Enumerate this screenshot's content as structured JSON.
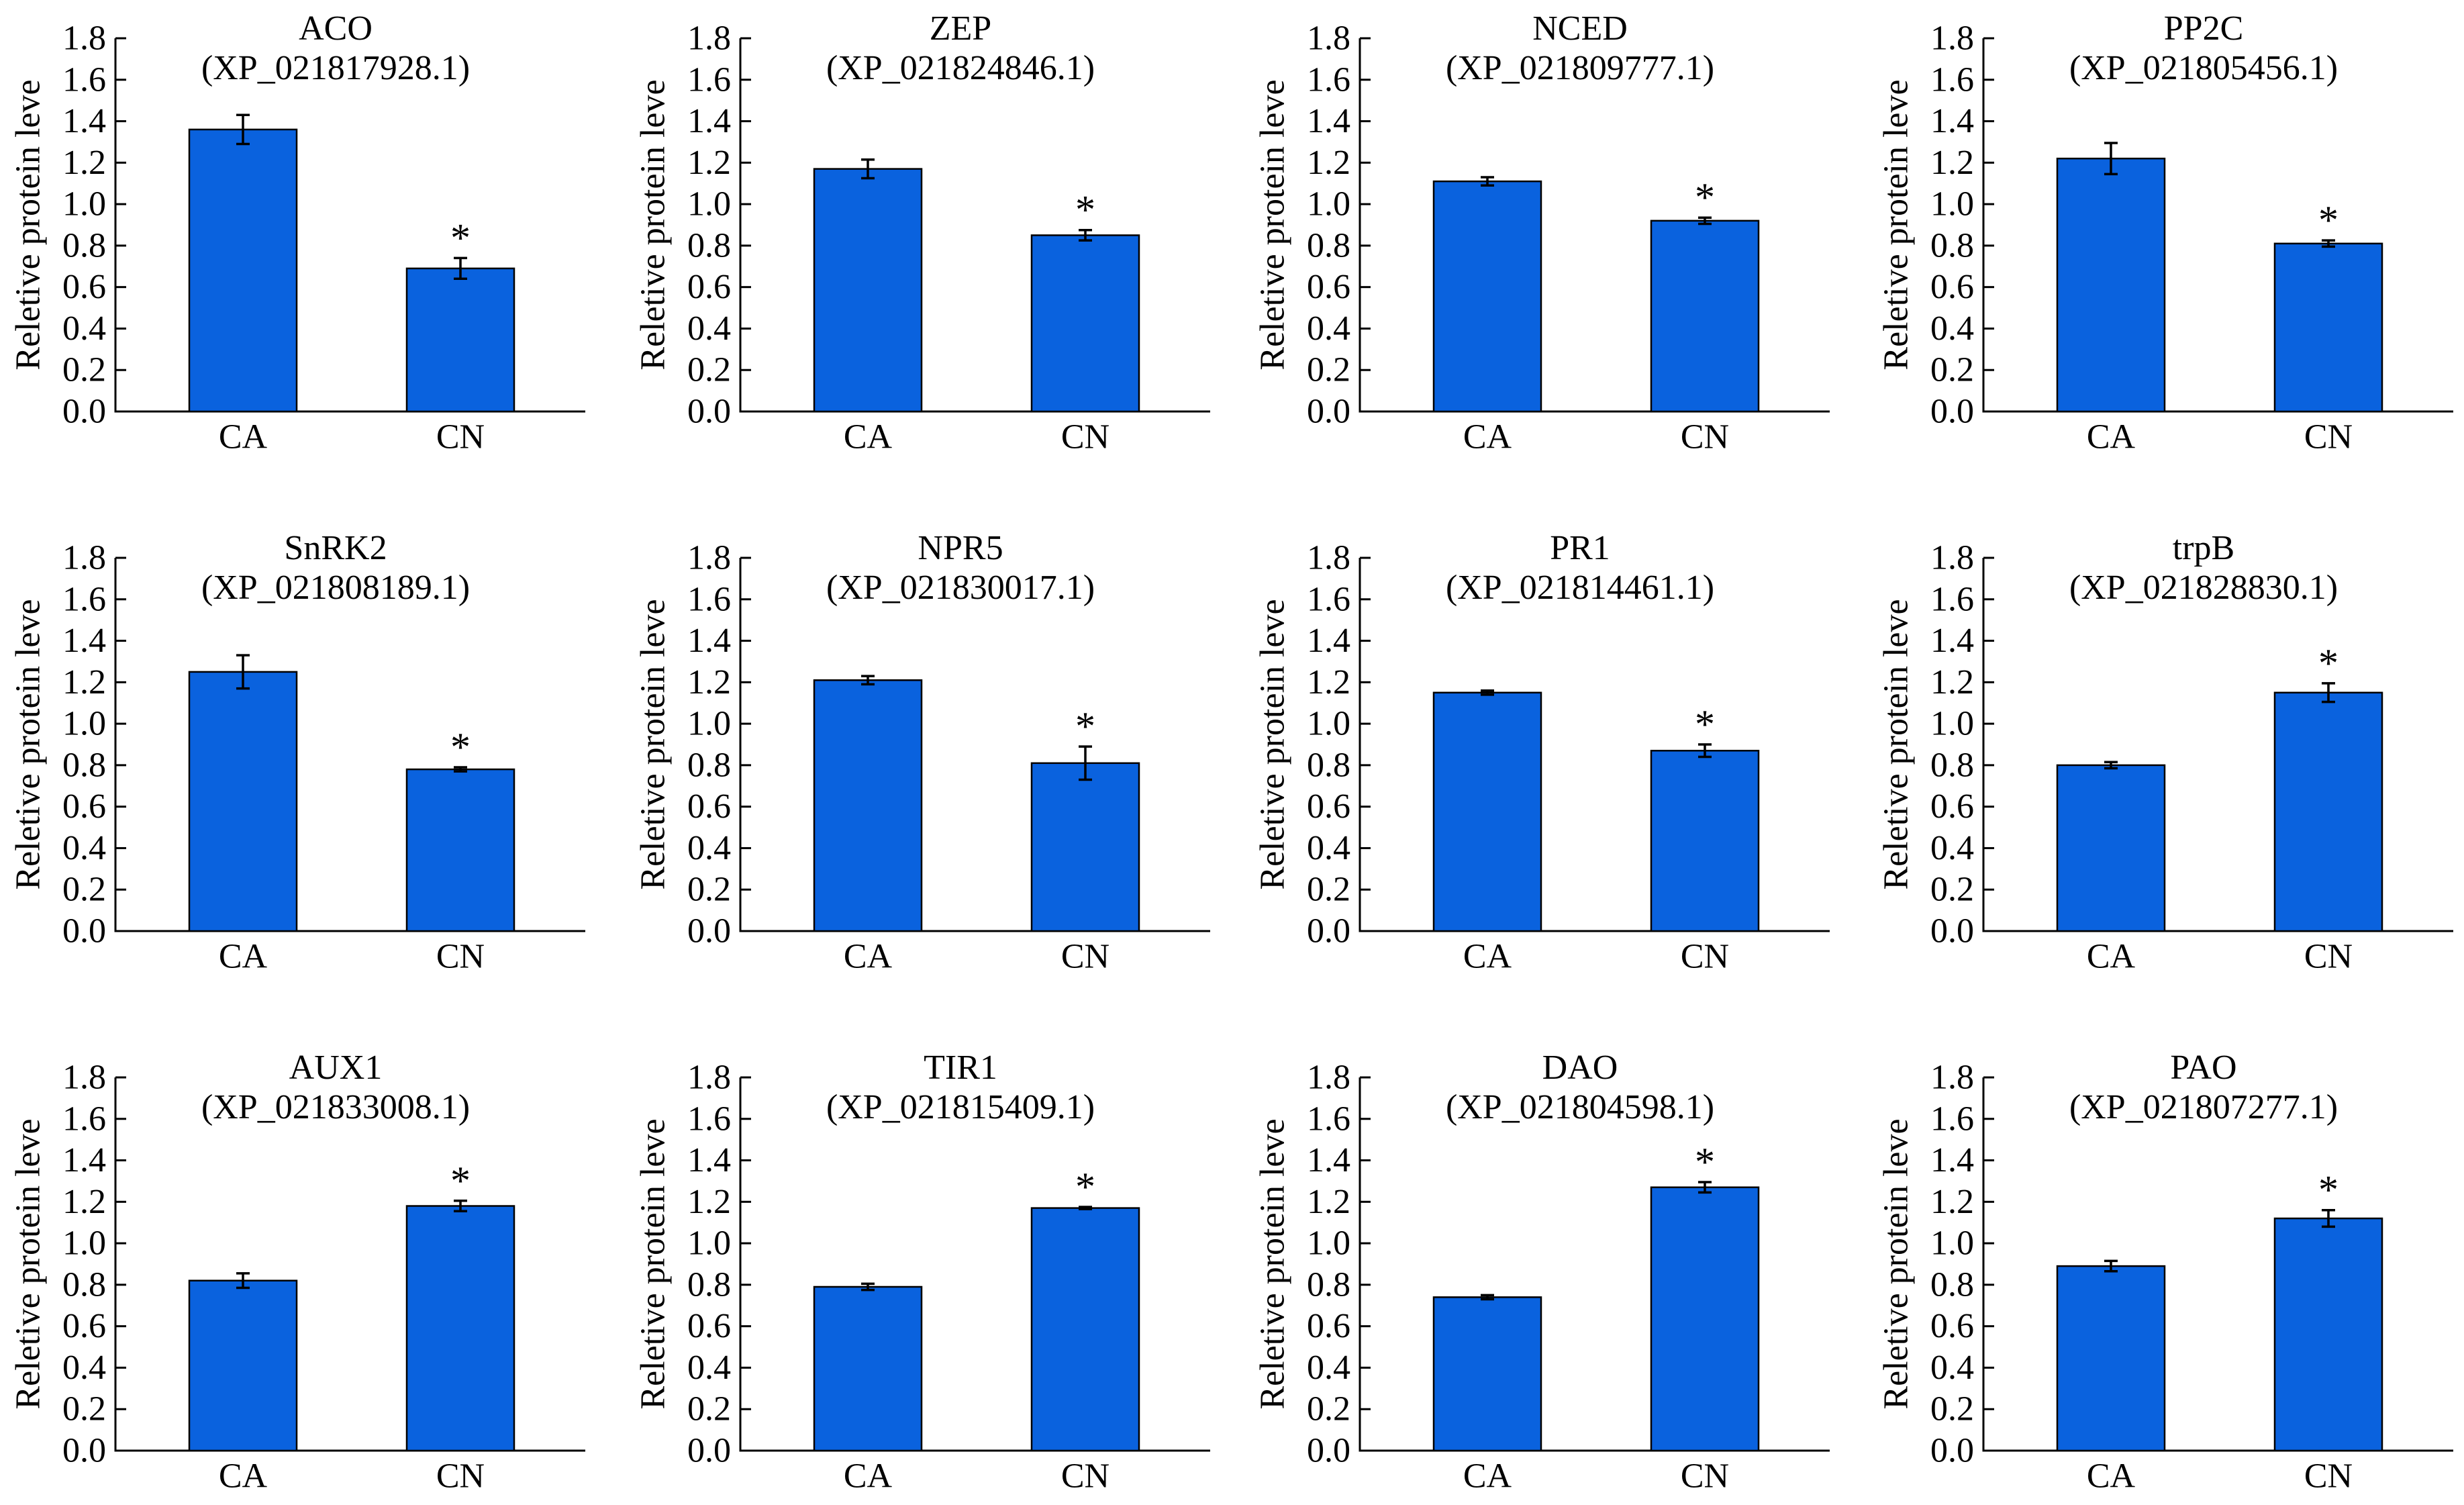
{
  "colors": {
    "bar": "#0A62DE",
    "bar_edge": "#000000",
    "axis": "#000000"
  },
  "chart_data": [
    {
      "type": "bar",
      "title": "ACO",
      "subtitle": "(XP_021817928.1)",
      "ylabel": "Reletive protein leve",
      "ylim": [
        0,
        1.8
      ],
      "yticks": [
        "0.0",
        "0.2",
        "0.4",
        "0.6",
        "0.8",
        "1.0",
        "1.2",
        "1.4",
        "1.6",
        "1.8"
      ],
      "categories": [
        "CA",
        "CN"
      ],
      "values": [
        1.36,
        0.69
      ],
      "errors": [
        0.07,
        0.05
      ],
      "significance": [
        "",
        "*"
      ]
    },
    {
      "type": "bar",
      "title": "ZEP",
      "subtitle": "(XP_021824846.1)",
      "ylabel": "Reletive protein leve",
      "ylim": [
        0,
        1.8
      ],
      "yticks": [
        "0.0",
        "0.2",
        "0.4",
        "0.6",
        "0.8",
        "1.0",
        "1.2",
        "1.4",
        "1.6",
        "1.8"
      ],
      "categories": [
        "CA",
        "CN"
      ],
      "values": [
        1.17,
        0.85
      ],
      "errors": [
        0.045,
        0.025
      ],
      "significance": [
        "",
        "*"
      ]
    },
    {
      "type": "bar",
      "title": "NCED",
      "subtitle": "(XP_021809777.1)",
      "ylabel": "Reletive protein leve",
      "ylim": [
        0,
        1.8
      ],
      "yticks": [
        "0.0",
        "0.2",
        "0.4",
        "0.6",
        "0.8",
        "1.0",
        "1.2",
        "1.4",
        "1.6",
        "1.8"
      ],
      "categories": [
        "CA",
        "CN"
      ],
      "values": [
        1.11,
        0.92
      ],
      "errors": [
        0.02,
        0.015
      ],
      "significance": [
        "",
        "*"
      ]
    },
    {
      "type": "bar",
      "title": "PP2C",
      "subtitle": "(XP_021805456.1)",
      "ylabel": "Reletive protein leve",
      "ylim": [
        0,
        1.8
      ],
      "yticks": [
        "0.0",
        "0.2",
        "0.4",
        "0.6",
        "0.8",
        "1.0",
        "1.2",
        "1.4",
        "1.6",
        "1.8"
      ],
      "categories": [
        "CA",
        "CN"
      ],
      "values": [
        1.22,
        0.81
      ],
      "errors": [
        0.075,
        0.015
      ],
      "significance": [
        "",
        "*"
      ]
    },
    {
      "type": "bar",
      "title": "SnRK2",
      "subtitle": "(XP_021808189.1)",
      "ylabel": "Reletive protein leve",
      "ylim": [
        0,
        1.8
      ],
      "yticks": [
        "0.0",
        "0.2",
        "0.4",
        "0.6",
        "0.8",
        "1.0",
        "1.2",
        "1.4",
        "1.6",
        "1.8"
      ],
      "categories": [
        "CA",
        "CN"
      ],
      "values": [
        1.25,
        0.78
      ],
      "errors": [
        0.08,
        0.01
      ],
      "significance": [
        "",
        "*"
      ]
    },
    {
      "type": "bar",
      "title": "NPR5",
      "subtitle": "(XP_021830017.1)",
      "ylabel": "Reletive protein leve",
      "ylim": [
        0,
        1.8
      ],
      "yticks": [
        "0.0",
        "0.2",
        "0.4",
        "0.6",
        "0.8",
        "1.0",
        "1.2",
        "1.4",
        "1.6",
        "1.8"
      ],
      "categories": [
        "CA",
        "CN"
      ],
      "values": [
        1.21,
        0.81
      ],
      "errors": [
        0.02,
        0.08
      ],
      "significance": [
        "",
        "*"
      ]
    },
    {
      "type": "bar",
      "title": "PR1",
      "subtitle": "(XP_021814461.1)",
      "ylabel": "Reletive protein leve",
      "ylim": [
        0,
        1.8
      ],
      "yticks": [
        "0.0",
        "0.2",
        "0.4",
        "0.6",
        "0.8",
        "1.0",
        "1.2",
        "1.4",
        "1.6",
        "1.8"
      ],
      "categories": [
        "CA",
        "CN"
      ],
      "values": [
        1.15,
        0.87
      ],
      "errors": [
        0.01,
        0.03
      ],
      "significance": [
        "",
        "*"
      ]
    },
    {
      "type": "bar",
      "title": "trpB",
      "subtitle": "(XP_021828830.1)",
      "ylabel": "Reletive protein leve",
      "ylim": [
        0,
        1.8
      ],
      "yticks": [
        "0.0",
        "0.2",
        "0.4",
        "0.6",
        "0.8",
        "1.0",
        "1.2",
        "1.4",
        "1.6",
        "1.8"
      ],
      "categories": [
        "CA",
        "CN"
      ],
      "values": [
        0.8,
        1.15
      ],
      "errors": [
        0.015,
        0.045
      ],
      "significance": [
        "",
        "*"
      ]
    },
    {
      "type": "bar",
      "title": "AUX1",
      "subtitle": "(XP_021833008.1)",
      "ylabel": "Reletive protein leve",
      "ylim": [
        0,
        1.8
      ],
      "yticks": [
        "0.0",
        "0.2",
        "0.4",
        "0.6",
        "0.8",
        "1.0",
        "1.2",
        "1.4",
        "1.6",
        "1.8"
      ],
      "categories": [
        "CA",
        "CN"
      ],
      "values": [
        0.82,
        1.18
      ],
      "errors": [
        0.035,
        0.025
      ],
      "significance": [
        "",
        "*"
      ]
    },
    {
      "type": "bar",
      "title": "TIR1",
      "subtitle": "(XP_021815409.1)",
      "ylabel": "Reletive protein leve",
      "ylim": [
        0,
        1.8
      ],
      "yticks": [
        "0.0",
        "0.2",
        "0.4",
        "0.6",
        "0.8",
        "1.0",
        "1.2",
        "1.4",
        "1.6",
        "1.8"
      ],
      "categories": [
        "CA",
        "CN"
      ],
      "values": [
        0.79,
        1.17
      ],
      "errors": [
        0.015,
        0.005
      ],
      "significance": [
        "",
        "*"
      ]
    },
    {
      "type": "bar",
      "title": "DAO",
      "subtitle": "(XP_021804598.1)",
      "ylabel": "Reletive protein leve",
      "ylim": [
        0,
        1.8
      ],
      "yticks": [
        "0.0",
        "0.2",
        "0.4",
        "0.6",
        "0.8",
        "1.0",
        "1.2",
        "1.4",
        "1.6",
        "1.8"
      ],
      "categories": [
        "CA",
        "CN"
      ],
      "values": [
        0.74,
        1.27
      ],
      "errors": [
        0.01,
        0.025
      ],
      "significance": [
        "",
        "*"
      ]
    },
    {
      "type": "bar",
      "title": "PAO",
      "subtitle": "(XP_021807277.1)",
      "ylabel": "Reletive protein leve",
      "ylim": [
        0,
        1.8
      ],
      "yticks": [
        "0.0",
        "0.2",
        "0.4",
        "0.6",
        "0.8",
        "1.0",
        "1.2",
        "1.4",
        "1.6",
        "1.8"
      ],
      "categories": [
        "CA",
        "CN"
      ],
      "values": [
        0.89,
        1.12
      ],
      "errors": [
        0.025,
        0.04
      ],
      "significance": [
        "",
        "*"
      ]
    }
  ]
}
